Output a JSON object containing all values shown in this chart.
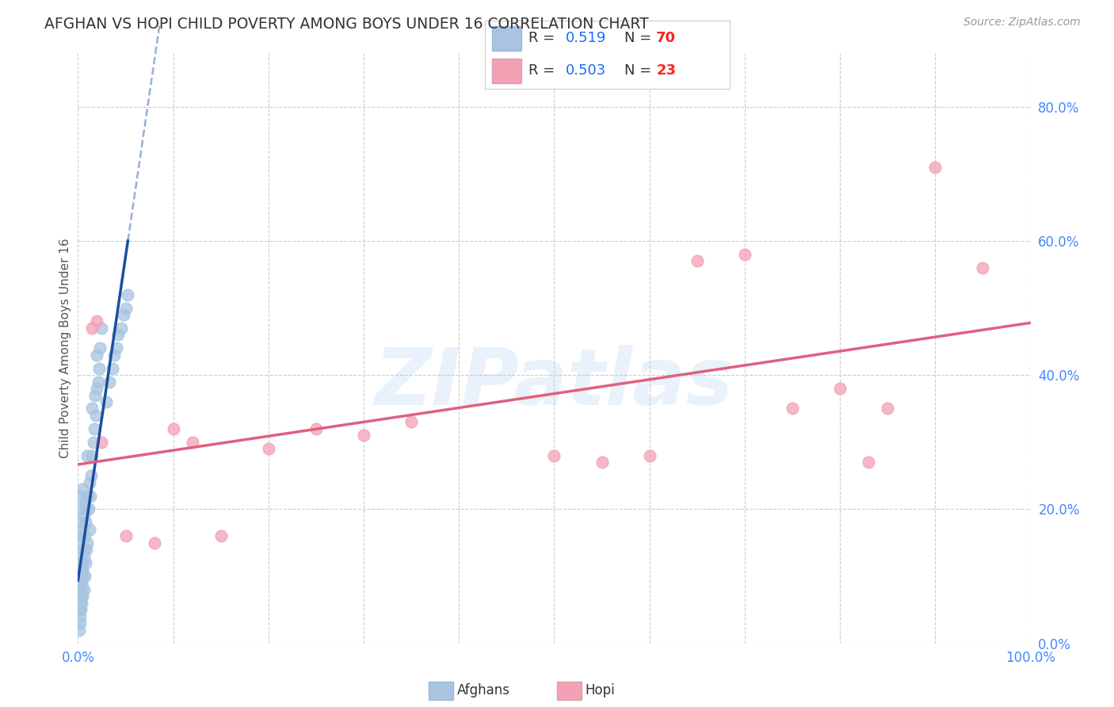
{
  "title": "AFGHAN VS HOPI CHILD POVERTY AMONG BOYS UNDER 16 CORRELATION CHART",
  "source": "Source: ZipAtlas.com",
  "ylabel": "Child Poverty Among Boys Under 16",
  "watermark": "ZIPatlas",
  "afghan_R": 0.519,
  "afghan_N": 70,
  "hopi_R": 0.503,
  "hopi_N": 23,
  "afghan_color": "#a8c4e0",
  "hopi_color": "#f4a0b5",
  "afghan_line_color": "#1a4fa0",
  "hopi_line_color": "#e06080",
  "background": "#ffffff",
  "grid_color": "#cccccc",
  "title_color": "#333333",
  "r_value_color": "#1a6aff",
  "n_value_color": "#ff2222",
  "axis_tick_color": "#4488ff",
  "afghan_scatter_x": [
    0.001,
    0.001,
    0.001,
    0.002,
    0.002,
    0.002,
    0.002,
    0.003,
    0.003,
    0.003,
    0.003,
    0.003,
    0.004,
    0.004,
    0.004,
    0.004,
    0.005,
    0.005,
    0.005,
    0.005,
    0.006,
    0.006,
    0.006,
    0.007,
    0.007,
    0.007,
    0.008,
    0.008,
    0.009,
    0.009,
    0.01,
    0.01,
    0.01,
    0.011,
    0.012,
    0.012,
    0.013,
    0.014,
    0.015,
    0.015,
    0.016,
    0.017,
    0.018,
    0.019,
    0.02,
    0.02,
    0.021,
    0.022,
    0.023,
    0.025,
    0.001,
    0.002,
    0.002,
    0.003,
    0.003,
    0.004,
    0.004,
    0.005,
    0.005,
    0.006,
    0.03,
    0.033,
    0.036,
    0.038,
    0.04,
    0.042,
    0.045,
    0.048,
    0.05,
    0.052
  ],
  "afghan_scatter_y": [
    0.05,
    0.08,
    0.12,
    0.04,
    0.07,
    0.1,
    0.15,
    0.05,
    0.09,
    0.13,
    0.18,
    0.22,
    0.06,
    0.11,
    0.16,
    0.2,
    0.07,
    0.12,
    0.17,
    0.23,
    0.08,
    0.14,
    0.19,
    0.1,
    0.16,
    0.21,
    0.12,
    0.18,
    0.14,
    0.2,
    0.15,
    0.22,
    0.28,
    0.2,
    0.17,
    0.24,
    0.22,
    0.25,
    0.28,
    0.35,
    0.3,
    0.32,
    0.37,
    0.34,
    0.38,
    0.43,
    0.39,
    0.41,
    0.44,
    0.47,
    0.02,
    0.03,
    0.05,
    0.06,
    0.08,
    0.07,
    0.09,
    0.1,
    0.11,
    0.13,
    0.36,
    0.39,
    0.41,
    0.43,
    0.44,
    0.46,
    0.47,
    0.49,
    0.5,
    0.52
  ],
  "hopi_scatter_x": [
    0.015,
    0.02,
    0.025,
    0.05,
    0.08,
    0.1,
    0.12,
    0.15,
    0.2,
    0.25,
    0.3,
    0.35,
    0.5,
    0.55,
    0.6,
    0.65,
    0.7,
    0.75,
    0.8,
    0.83,
    0.85,
    0.9,
    0.95
  ],
  "hopi_scatter_y": [
    0.47,
    0.48,
    0.3,
    0.16,
    0.15,
    0.32,
    0.3,
    0.16,
    0.29,
    0.32,
    0.31,
    0.33,
    0.28,
    0.27,
    0.28,
    0.57,
    0.58,
    0.35,
    0.38,
    0.27,
    0.35,
    0.71,
    0.56
  ],
  "xlim": [
    0.0,
    1.0
  ],
  "ylim": [
    0.0,
    0.88
  ],
  "xtick_pos": [
    0.0,
    0.1,
    0.2,
    0.3,
    0.4,
    0.5,
    0.6,
    0.7,
    0.8,
    0.9,
    1.0
  ],
  "ytick_pos": [
    0.0,
    0.2,
    0.4,
    0.6,
    0.8
  ],
  "ytick_labels": [
    "0.0%",
    "20.0%",
    "40.0%",
    "60.0%",
    "80.0%"
  ]
}
